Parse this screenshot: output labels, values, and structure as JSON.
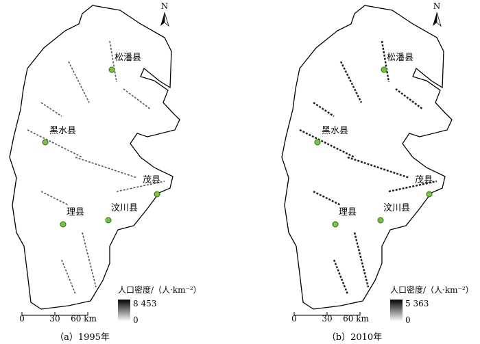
{
  "panels": [
    {
      "caption": "（a）1995年",
      "north": "N",
      "counties": [
        "松潘县",
        "黑水县",
        "茂县",
        "汶川县",
        "理县"
      ],
      "legend": {
        "title": "人口密度/（人·km⁻²）",
        "max": "8 453",
        "min": "0"
      },
      "scale": [
        "0",
        "30",
        "60 km"
      ]
    },
    {
      "caption": "（b）2010年",
      "north": "N",
      "counties": [
        "松潘县",
        "黑水县",
        "茂县",
        "汶川县",
        "理县"
      ],
      "legend": {
        "title": "人口密度/（人·km⁻²）",
        "max": "5 363",
        "min": "0"
      },
      "scale": [
        "0",
        "30",
        "60 km"
      ]
    }
  ]
}
